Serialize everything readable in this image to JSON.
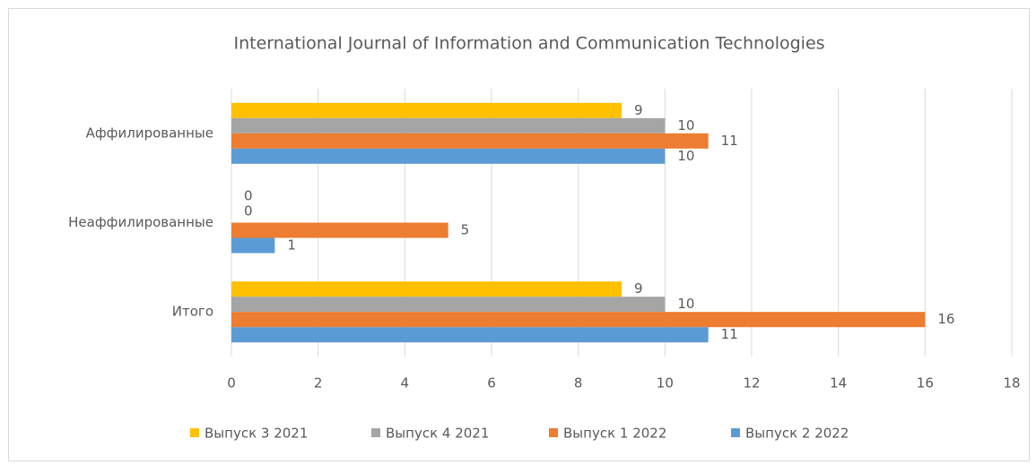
{
  "chart_data": {
    "type": "hbar",
    "title": "International Journal of Information and Communication Technologies",
    "categories": [
      "Аффилированные",
      "Неаффилированные",
      "Итого"
    ],
    "series": [
      {
        "name": "Выпуск 3 2021",
        "color": "#ffc000",
        "values": [
          9,
          0,
          9
        ]
      },
      {
        "name": "Выпуск 4 2021",
        "color": "#a5a5a5",
        "values": [
          10,
          0,
          10
        ]
      },
      {
        "name": "Выпуск 1 2022",
        "color": "#ed7d31",
        "values": [
          11,
          5,
          16
        ]
      },
      {
        "name": "Выпуск 2 2022",
        "color": "#5b9bd5",
        "values": [
          10,
          1,
          11
        ]
      }
    ],
    "xlim": [
      0,
      18
    ],
    "xticks": [
      0,
      2,
      4,
      6,
      8,
      10,
      12,
      14,
      16,
      18
    ],
    "grid": true,
    "legend": "bottom"
  }
}
